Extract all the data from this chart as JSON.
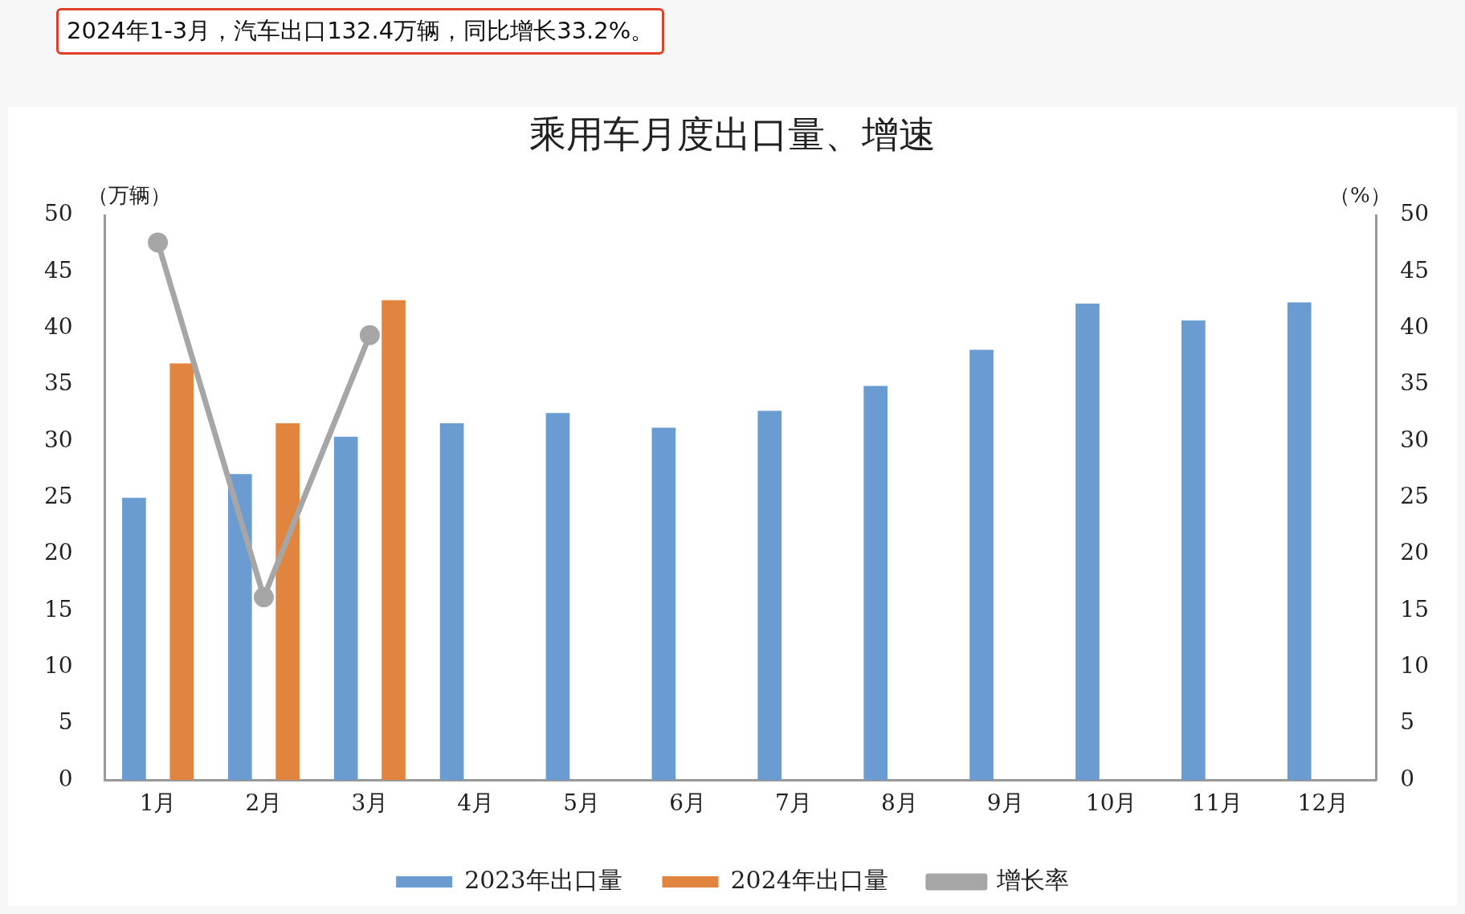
{
  "chart_data": {
    "type": "bar",
    "title": "乘用车月度出口量、增速",
    "annotations": [
      "2024年1-3月，汽车出口132.4万辆，同比增长33.2%。"
    ],
    "ylabel": "（万辆）",
    "y2label": "（%）",
    "categories": [
      "1月",
      "2月",
      "3月",
      "4月",
      "5月",
      "6月",
      "7月",
      "8月",
      "9月",
      "10月",
      "11月",
      "12月"
    ],
    "series": [
      {
        "name": "2023年出口量",
        "color": "#6a9bd1",
        "values": [
          25.0,
          27.1,
          30.4,
          31.6,
          32.5,
          31.2,
          32.7,
          34.9,
          38.1,
          42.2,
          40.7,
          42.3
        ]
      },
      {
        "name": "2024年出口量",
        "color": "#e0843f",
        "values": [
          36.9,
          31.6,
          42.5,
          null,
          null,
          null,
          null,
          null,
          null,
          null,
          null,
          null
        ]
      },
      {
        "name": "增长率",
        "type": "line",
        "axis": "y2",
        "color": "#a6a6a6",
        "marker": "circle",
        "values": [
          47.6,
          16.2,
          39.4,
          null,
          null,
          null,
          null,
          null,
          null,
          null,
          null,
          null
        ]
      }
    ],
    "ylim": [
      0,
      50
    ],
    "yticks": [
      0,
      5,
      10,
      15,
      20,
      25,
      30,
      35,
      40,
      45,
      50
    ],
    "y2lim": [
      0,
      50
    ],
    "y2ticks": [
      0,
      5,
      10,
      15,
      20,
      25,
      30,
      35,
      40,
      45,
      50
    ],
    "legend": "bottom"
  }
}
